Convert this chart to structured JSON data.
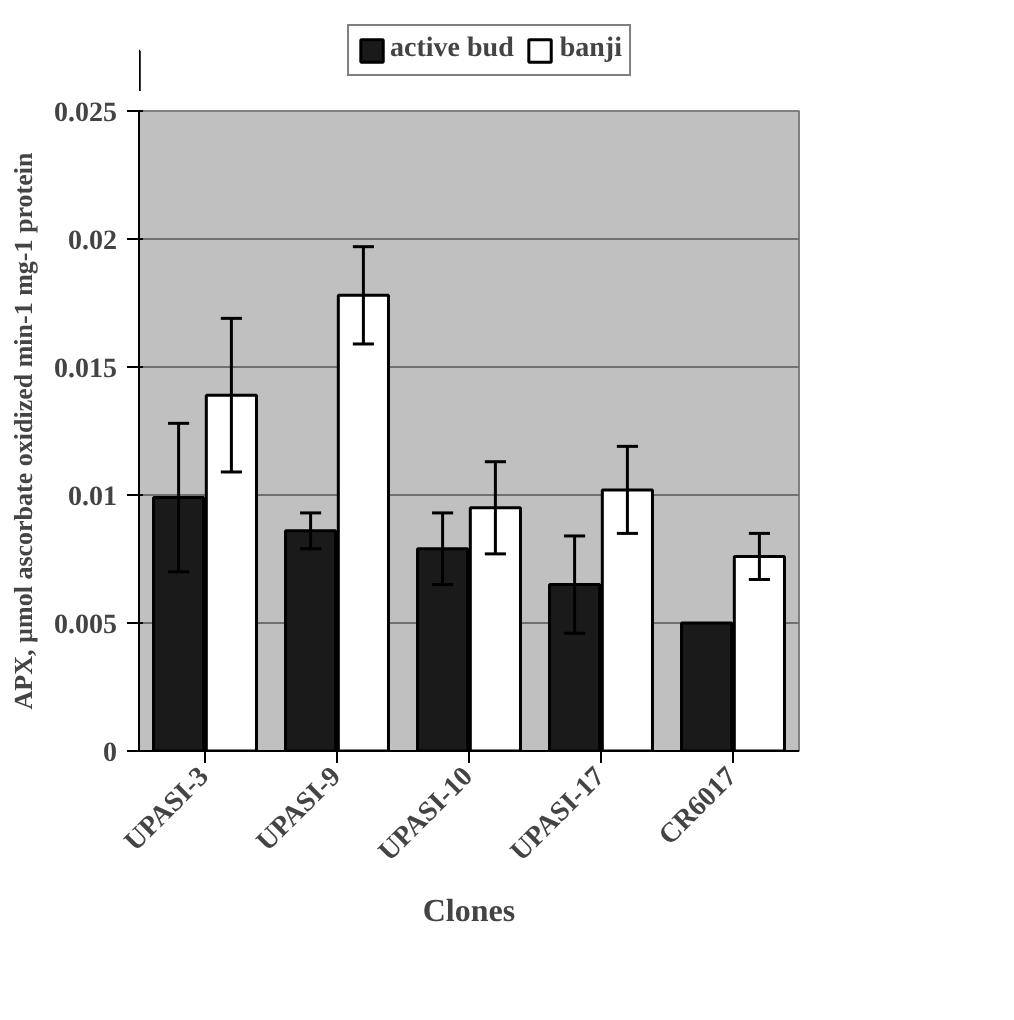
{
  "chart_data": {
    "type": "bar",
    "xlabel": "Clones",
    "ylabel": "APX, µmol ascorbate oxidized min-1 mg-1 protein",
    "categories": [
      "UPASI-3",
      "UPASI-9",
      "UPASI-10",
      "UPASI-17",
      "CR6017"
    ],
    "series": [
      {
        "name": "active bud",
        "color": "#1a1a1a",
        "values": [
          0.0099,
          0.0086,
          0.0079,
          0.0065,
          0.005
        ],
        "errors": [
          0.0029,
          0.0007,
          0.0014,
          0.0019,
          null
        ]
      },
      {
        "name": "banji",
        "color": "#ffffff",
        "values": [
          0.0139,
          0.0178,
          0.0095,
          0.0102,
          0.0076
        ],
        "errors": [
          0.003,
          0.0019,
          0.0018,
          0.0017,
          0.0009
        ]
      }
    ],
    "ylim": [
      0,
      0.025
    ],
    "yticks": [
      0,
      0.005,
      0.01,
      0.015,
      0.02,
      0.025
    ],
    "grid": "y",
    "legend": "top"
  }
}
